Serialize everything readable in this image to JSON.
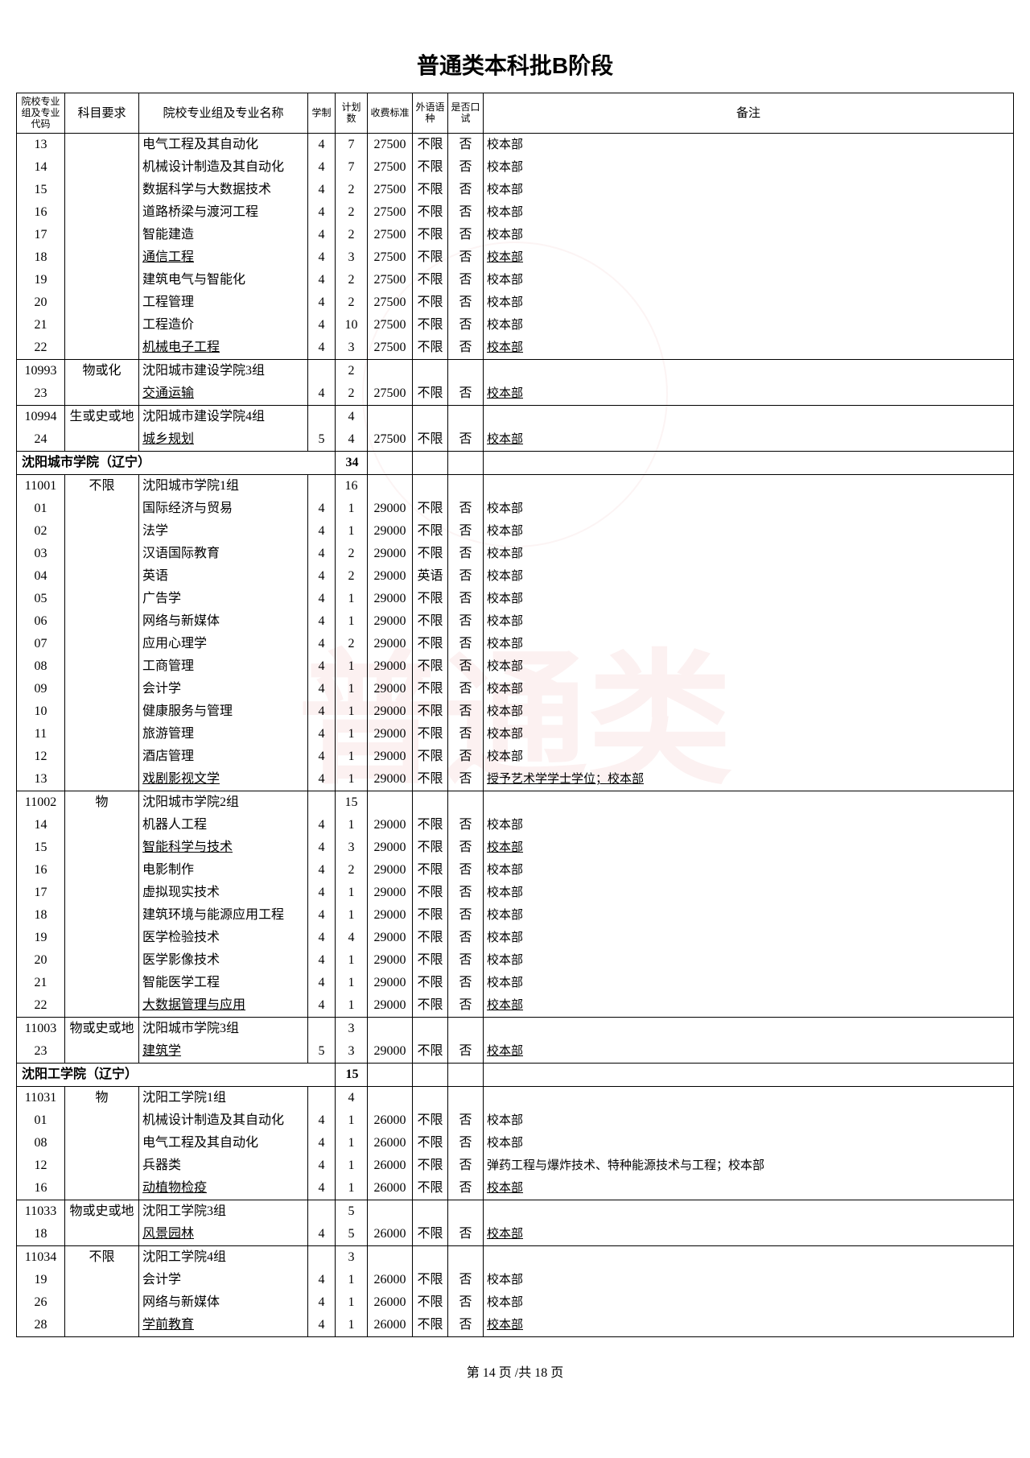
{
  "title": "普通类本科批B阶段",
  "footer": "第 14 页 /共 18 页",
  "headers": {
    "code": "院校专业组及专业代码",
    "subject": "科目要求",
    "name": "院校专业组及专业名称",
    "years": "学制",
    "plan": "计划数",
    "fee": "收费标准",
    "lang": "外语语种",
    "oral": "是否口试",
    "remark": "备注"
  },
  "rows": [
    {
      "type": "d",
      "code": "13",
      "subj": "",
      "name": "电气工程及其自动化",
      "y": "4",
      "p": "7",
      "f": "27500",
      "l": "不限",
      "o": "否",
      "r": "校本部"
    },
    {
      "type": "d",
      "code": "14",
      "subj": "",
      "name": "机械设计制造及其自动化",
      "y": "4",
      "p": "7",
      "f": "27500",
      "l": "不限",
      "o": "否",
      "r": "校本部"
    },
    {
      "type": "d",
      "code": "15",
      "subj": "",
      "name": "数据科学与大数据技术",
      "y": "4",
      "p": "2",
      "f": "27500",
      "l": "不限",
      "o": "否",
      "r": "校本部"
    },
    {
      "type": "d",
      "code": "16",
      "subj": "",
      "name": "道路桥梁与渡河工程",
      "y": "4",
      "p": "2",
      "f": "27500",
      "l": "不限",
      "o": "否",
      "r": "校本部"
    },
    {
      "type": "d",
      "code": "17",
      "subj": "",
      "name": "智能建造",
      "y": "4",
      "p": "2",
      "f": "27500",
      "l": "不限",
      "o": "否",
      "r": "校本部"
    },
    {
      "type": "d",
      "code": "18",
      "subj": "",
      "name": "通信工程",
      "y": "4",
      "p": "3",
      "f": "27500",
      "l": "不限",
      "o": "否",
      "r": "校本部",
      "u": true
    },
    {
      "type": "d",
      "code": "19",
      "subj": "",
      "name": "建筑电气与智能化",
      "y": "4",
      "p": "2",
      "f": "27500",
      "l": "不限",
      "o": "否",
      "r": "校本部"
    },
    {
      "type": "d",
      "code": "20",
      "subj": "",
      "name": "工程管理",
      "y": "4",
      "p": "2",
      "f": "27500",
      "l": "不限",
      "o": "否",
      "r": "校本部"
    },
    {
      "type": "d",
      "code": "21",
      "subj": "",
      "name": "工程造价",
      "y": "4",
      "p": "10",
      "f": "27500",
      "l": "不限",
      "o": "否",
      "r": "校本部"
    },
    {
      "type": "d",
      "code": "22",
      "subj": "",
      "name": "机械电子工程",
      "y": "4",
      "p": "3",
      "f": "27500",
      "l": "不限",
      "o": "否",
      "r": "校本部",
      "u": true,
      "sep": true
    },
    {
      "type": "d",
      "code": "10993",
      "subj": "物或化",
      "name": "沈阳城市建设学院3组",
      "y": "",
      "p": "2",
      "f": "",
      "l": "",
      "o": "",
      "r": ""
    },
    {
      "type": "d",
      "code": "23",
      "subj": "",
      "name": "交通运输",
      "y": "4",
      "p": "2",
      "f": "27500",
      "l": "不限",
      "o": "否",
      "r": "校本部",
      "u": true,
      "sep": true
    },
    {
      "type": "d",
      "code": "10994",
      "subj": "生或史或地",
      "name": "沈阳城市建设学院4组",
      "y": "",
      "p": "4",
      "f": "",
      "l": "",
      "o": "",
      "r": ""
    },
    {
      "type": "d",
      "code": "24",
      "subj": "",
      "name": "城乡规划",
      "y": "5",
      "p": "4",
      "f": "27500",
      "l": "不限",
      "o": "否",
      "r": "校本部",
      "u": true,
      "sep": true
    },
    {
      "type": "s",
      "name": "沈阳城市学院（辽宁）",
      "p": "34"
    },
    {
      "type": "d",
      "code": "11001",
      "subj": "不限",
      "name": "沈阳城市学院1组",
      "y": "",
      "p": "16",
      "f": "",
      "l": "",
      "o": "",
      "r": ""
    },
    {
      "type": "d",
      "code": "01",
      "subj": "",
      "name": "国际经济与贸易",
      "y": "4",
      "p": "1",
      "f": "29000",
      "l": "不限",
      "o": "否",
      "r": "校本部"
    },
    {
      "type": "d",
      "code": "02",
      "subj": "",
      "name": "法学",
      "y": "4",
      "p": "1",
      "f": "29000",
      "l": "不限",
      "o": "否",
      "r": "校本部"
    },
    {
      "type": "d",
      "code": "03",
      "subj": "",
      "name": "汉语国际教育",
      "y": "4",
      "p": "2",
      "f": "29000",
      "l": "不限",
      "o": "否",
      "r": "校本部"
    },
    {
      "type": "d",
      "code": "04",
      "subj": "",
      "name": "英语",
      "y": "4",
      "p": "2",
      "f": "29000",
      "l": "英语",
      "o": "否",
      "r": "校本部"
    },
    {
      "type": "d",
      "code": "05",
      "subj": "",
      "name": "广告学",
      "y": "4",
      "p": "1",
      "f": "29000",
      "l": "不限",
      "o": "否",
      "r": "校本部"
    },
    {
      "type": "d",
      "code": "06",
      "subj": "",
      "name": "网络与新媒体",
      "y": "4",
      "p": "1",
      "f": "29000",
      "l": "不限",
      "o": "否",
      "r": "校本部"
    },
    {
      "type": "d",
      "code": "07",
      "subj": "",
      "name": "应用心理学",
      "y": "4",
      "p": "2",
      "f": "29000",
      "l": "不限",
      "o": "否",
      "r": "校本部"
    },
    {
      "type": "d",
      "code": "08",
      "subj": "",
      "name": "工商管理",
      "y": "4",
      "p": "1",
      "f": "29000",
      "l": "不限",
      "o": "否",
      "r": "校本部"
    },
    {
      "type": "d",
      "code": "09",
      "subj": "",
      "name": "会计学",
      "y": "4",
      "p": "1",
      "f": "29000",
      "l": "不限",
      "o": "否",
      "r": "校本部"
    },
    {
      "type": "d",
      "code": "10",
      "subj": "",
      "name": "健康服务与管理",
      "y": "4",
      "p": "1",
      "f": "29000",
      "l": "不限",
      "o": "否",
      "r": "校本部"
    },
    {
      "type": "d",
      "code": "11",
      "subj": "",
      "name": "旅游管理",
      "y": "4",
      "p": "1",
      "f": "29000",
      "l": "不限",
      "o": "否",
      "r": "校本部"
    },
    {
      "type": "d",
      "code": "12",
      "subj": "",
      "name": "酒店管理",
      "y": "4",
      "p": "1",
      "f": "29000",
      "l": "不限",
      "o": "否",
      "r": "校本部"
    },
    {
      "type": "d",
      "code": "13",
      "subj": "",
      "name": "戏剧影视文学",
      "y": "4",
      "p": "1",
      "f": "29000",
      "l": "不限",
      "o": "否",
      "r": "授予艺术学学士学位；校本部",
      "u": true,
      "sep": true
    },
    {
      "type": "d",
      "code": "11002",
      "subj": "物",
      "name": "沈阳城市学院2组",
      "y": "",
      "p": "15",
      "f": "",
      "l": "",
      "o": "",
      "r": ""
    },
    {
      "type": "d",
      "code": "14",
      "subj": "",
      "name": "机器人工程",
      "y": "4",
      "p": "1",
      "f": "29000",
      "l": "不限",
      "o": "否",
      "r": "校本部"
    },
    {
      "type": "d",
      "code": "15",
      "subj": "",
      "name": "智能科学与技术",
      "y": "4",
      "p": "3",
      "f": "29000",
      "l": "不限",
      "o": "否",
      "r": "校本部",
      "u": true
    },
    {
      "type": "d",
      "code": "16",
      "subj": "",
      "name": "电影制作",
      "y": "4",
      "p": "2",
      "f": "29000",
      "l": "不限",
      "o": "否",
      "r": "校本部"
    },
    {
      "type": "d",
      "code": "17",
      "subj": "",
      "name": "虚拟现实技术",
      "y": "4",
      "p": "1",
      "f": "29000",
      "l": "不限",
      "o": "否",
      "r": "校本部"
    },
    {
      "type": "d",
      "code": "18",
      "subj": "",
      "name": "建筑环境与能源应用工程",
      "y": "4",
      "p": "1",
      "f": "29000",
      "l": "不限",
      "o": "否",
      "r": "校本部"
    },
    {
      "type": "d",
      "code": "19",
      "subj": "",
      "name": "医学检验技术",
      "y": "4",
      "p": "4",
      "f": "29000",
      "l": "不限",
      "o": "否",
      "r": "校本部"
    },
    {
      "type": "d",
      "code": "20",
      "subj": "",
      "name": "医学影像技术",
      "y": "4",
      "p": "1",
      "f": "29000",
      "l": "不限",
      "o": "否",
      "r": "校本部"
    },
    {
      "type": "d",
      "code": "21",
      "subj": "",
      "name": "智能医学工程",
      "y": "4",
      "p": "1",
      "f": "29000",
      "l": "不限",
      "o": "否",
      "r": "校本部"
    },
    {
      "type": "d",
      "code": "22",
      "subj": "",
      "name": "大数据管理与应用",
      "y": "4",
      "p": "1",
      "f": "29000",
      "l": "不限",
      "o": "否",
      "r": "校本部",
      "u": true,
      "sep": true
    },
    {
      "type": "d",
      "code": "11003",
      "subj": "物或史或地",
      "name": "沈阳城市学院3组",
      "y": "",
      "p": "3",
      "f": "",
      "l": "",
      "o": "",
      "r": ""
    },
    {
      "type": "d",
      "code": "23",
      "subj": "",
      "name": "建筑学",
      "y": "5",
      "p": "3",
      "f": "29000",
      "l": "不限",
      "o": "否",
      "r": "校本部",
      "u": true,
      "sep": true
    },
    {
      "type": "s",
      "name": "沈阳工学院（辽宁）",
      "p": "15"
    },
    {
      "type": "d",
      "code": "11031",
      "subj": "物",
      "name": "沈阳工学院1组",
      "y": "",
      "p": "4",
      "f": "",
      "l": "",
      "o": "",
      "r": ""
    },
    {
      "type": "d",
      "code": "01",
      "subj": "",
      "name": "机械设计制造及其自动化",
      "y": "4",
      "p": "1",
      "f": "26000",
      "l": "不限",
      "o": "否",
      "r": "校本部"
    },
    {
      "type": "d",
      "code": "08",
      "subj": "",
      "name": "电气工程及其自动化",
      "y": "4",
      "p": "1",
      "f": "26000",
      "l": "不限",
      "o": "否",
      "r": "校本部"
    },
    {
      "type": "d",
      "code": "12",
      "subj": "",
      "name": "兵器类",
      "y": "4",
      "p": "1",
      "f": "26000",
      "l": "不限",
      "o": "否",
      "r": "弹药工程与爆炸技术、特种能源技术与工程；校本部"
    },
    {
      "type": "d",
      "code": "16",
      "subj": "",
      "name": "动植物检疫",
      "y": "4",
      "p": "1",
      "f": "26000",
      "l": "不限",
      "o": "否",
      "r": "校本部",
      "u": true,
      "sep": true
    },
    {
      "type": "d",
      "code": "11033",
      "subj": "物或史或地",
      "name": "沈阳工学院3组",
      "y": "",
      "p": "5",
      "f": "",
      "l": "",
      "o": "",
      "r": ""
    },
    {
      "type": "d",
      "code": "18",
      "subj": "",
      "name": "风景园林",
      "y": "4",
      "p": "5",
      "f": "26000",
      "l": "不限",
      "o": "否",
      "r": "校本部",
      "u": true,
      "sep": true
    },
    {
      "type": "d",
      "code": "11034",
      "subj": "不限",
      "name": "沈阳工学院4组",
      "y": "",
      "p": "3",
      "f": "",
      "l": "",
      "o": "",
      "r": ""
    },
    {
      "type": "d",
      "code": "19",
      "subj": "",
      "name": "会计学",
      "y": "4",
      "p": "1",
      "f": "26000",
      "l": "不限",
      "o": "否",
      "r": "校本部"
    },
    {
      "type": "d",
      "code": "26",
      "subj": "",
      "name": "网络与新媒体",
      "y": "4",
      "p": "1",
      "f": "26000",
      "l": "不限",
      "o": "否",
      "r": "校本部"
    },
    {
      "type": "d",
      "code": "28",
      "subj": "",
      "name": "学前教育",
      "y": "4",
      "p": "1",
      "f": "26000",
      "l": "不限",
      "o": "否",
      "r": "校本部",
      "u": true,
      "sep": true
    }
  ]
}
